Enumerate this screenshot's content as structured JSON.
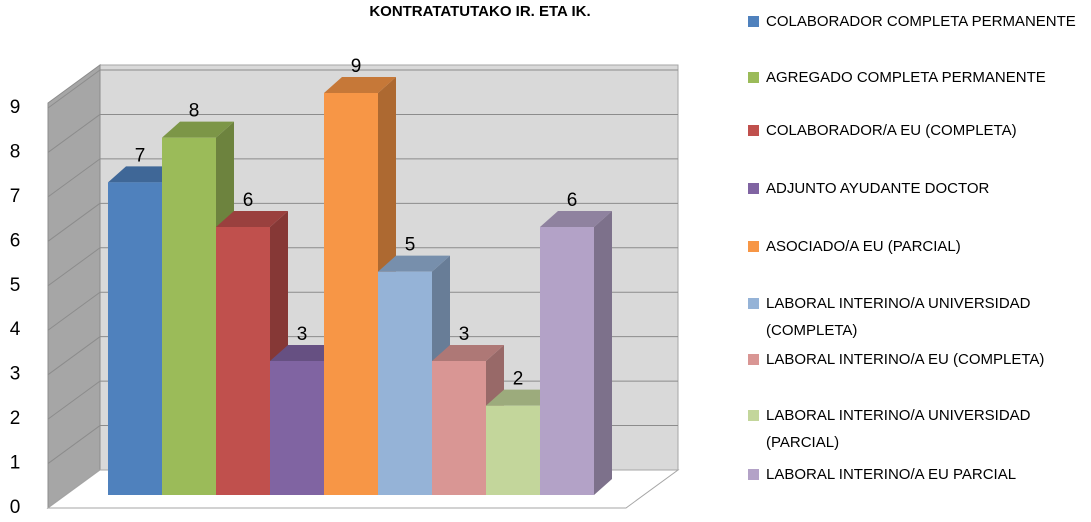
{
  "chart_data": {
    "type": "bar",
    "title": "KONTRATATUTAKO IR. ETA IK.",
    "categories": [
      null
    ],
    "series": [
      {
        "name": "COLABORADOR COMPLETA PERMANENTE",
        "color": "#4f81bd",
        "values": [
          7
        ]
      },
      {
        "name": "AGREGADO COMPLETA PERMANENTE",
        "color": "#9bbb59",
        "values": [
          8
        ]
      },
      {
        "name": "COLABORADOR/A EU (COMPLETA)",
        "color": "#c0504d",
        "values": [
          6
        ]
      },
      {
        "name": "ADJUNTO AYUDANTE DOCTOR",
        "color": "#8064a2",
        "values": [
          3
        ]
      },
      {
        "name": "ASOCIADO/A EU (PARCIAL)",
        "color": "#f79646",
        "values": [
          9
        ]
      },
      {
        "name": "LABORAL INTERINO/A UNIVERSIDAD (COMPLETA)",
        "color": "#95b3d7",
        "values": [
          5
        ]
      },
      {
        "name": "LABORAL INTERINO/A EU (COMPLETA)",
        "color": "#d99694",
        "values": [
          3
        ]
      },
      {
        "name": "LABORAL INTERINO/A UNIVERSIDAD (PARCIAL)",
        "color": "#c3d69b",
        "values": [
          2
        ]
      },
      {
        "name": "LABORAL INTERINO/A EU PARCIAL",
        "color": "#b3a2c7",
        "values": [
          6
        ]
      }
    ],
    "ylim": [
      0,
      9
    ],
    "yticks": [
      0,
      1,
      2,
      3,
      4,
      5,
      6,
      7,
      8,
      9
    ],
    "grid": true,
    "legend": "right"
  }
}
